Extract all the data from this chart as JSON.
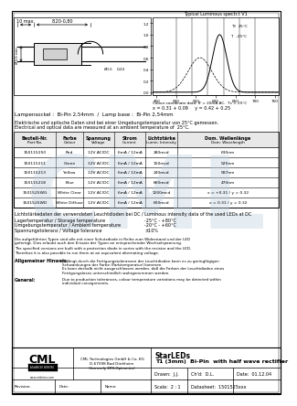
{
  "title_line1": "StarLEDs",
  "title_line2": "T1 (3mm)  Bi-Pin  with half wave rectifier",
  "company_line1": "CML Technologies GmbH & Co. KG",
  "company_line2": "D-67098 Bad Dürkheim",
  "company_line3": "(formerly EMI-Optronics)",
  "drawn": "J.J.",
  "checked": "D.L.",
  "date": "01.12.04",
  "scale": "2 : 1",
  "datasheet": "1501525xxx",
  "lamp_base": "Lampensockel :  Bi-Pin 2,54mm  /  Lamp base :  Bi-Pin 2,54mm",
  "electrical_note_de": "Elektrische und optische Daten sind bei einer Umgebungstemperatur von 25°C gemessen.",
  "electrical_note_en": "Electrical and optical data are measured at an ambient temperature of  25°C.",
  "luminous_note": "Lichtstärkedaten der verwendeten Leuchtdioden bei DC / Luminous intensity data of the used LEDs at DC",
  "temp_rows": [
    [
      "Lagertemperatur / Storage temperature",
      "-25°C - +80°C"
    ],
    [
      "Umgebungstemperatur / Ambient temperature",
      "-20°C - +60°C"
    ],
    [
      "Spannungstoleranz / Voltage tolerance",
      "±10%"
    ]
  ],
  "protection_de": "Die aufgeführten Typen sind alle mit einer Schutzdiode in Reihe zum Widerstand und der LED gefertigt. Dies erlaubt auch den Einsatz der Typen an entsprechender Wechselspannung.",
  "protection_en": "The specified versions are built with a protection diode in series with the resistor and the LED. Therefore it is also possible to run them at an equivalent alternating voltage.",
  "allg_label": "Allgemeiner Hinweis:",
  "allg_text": "Bedingt durch die Fertigungstoleranzen der Leuchtdioden kann es zu geringfügigen\nSchwankungen der Farbe (Farbtemperatur) kommen.\nEs kann deshalb nicht ausgeschlossen werden, daß die Farben der Leuchtdioden eines\nFertigungsloses unterschiedlich wahrgenommen werden.",
  "general_label": "General:",
  "general_text": "Due to production tolerances, colour temperature variations may be detected within\nindividual consignments.",
  "table_headers": [
    "Bestell-Nr.\nPart No.",
    "Farbe\nColour",
    "Spannung\nVoltage",
    "Strom\nCurrent",
    "Lichtstärke\nLumin. Intensity",
    "Dom. Wellenlänge\nDom. Wavelength"
  ],
  "table_rows": [
    [
      "150115250",
      "Red",
      "12V AC/DC",
      "6mA / 12mA",
      "280mcd",
      "630nm"
    ],
    [
      "150115211",
      "Green",
      "12V AC/DC",
      "6mA / 12mA",
      "150mcd",
      "525nm"
    ],
    [
      "150115213",
      "Yellow",
      "12V AC/DC",
      "6mA / 12mA",
      "240mcd",
      "587nm"
    ],
    [
      "150115218",
      "Blue",
      "12V AC/DC",
      "6mA / 12mA",
      "860mcd",
      "470nm"
    ],
    [
      "1501525WG",
      "White Clear",
      "12V AC/DC",
      "6mA / 12mA",
      "1200mcd",
      "x = +0.31 / y = 0.32"
    ],
    [
      "1501525WD",
      "White Diffuse",
      "12V AC/DC",
      "6mA / 12mA",
      "600mcd",
      "x = 0.31 / y = 0.32"
    ]
  ],
  "graph_title": "Typical Luminous spectr.t V1",
  "graph_caption1": "Colour coordinate data: IF = 20mA AC,  Tv = 25°C",
  "graph_caption2": "x = 0.31 + 0.09     y = 0.42 + 0.25",
  "dim_10max": "10 max.",
  "dim_825": "8,20-0,80",
  "dim_phi35": "Ø3,5 min.",
  "dim_phi05": "Ø0,5",
  "dim_024": "0,24",
  "bg": "#ffffff",
  "watermark": "#c0d0e0"
}
